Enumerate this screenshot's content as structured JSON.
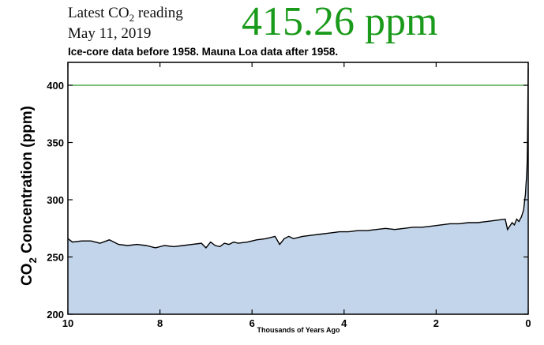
{
  "header": {
    "latest_label_prefix": "Latest CO",
    "latest_label_sub": "2",
    "latest_label_suffix": " reading",
    "date": "May 11, 2019",
    "value": "415.26 ppm",
    "subtitle": "Ice-core data before 1958. Mauna Loa data after 1958."
  },
  "colors": {
    "fill": "#c3d5ea",
    "line": "#000000",
    "reference_line": "#2e9a2e",
    "value_text": "#1a9a1a"
  },
  "chart_data": {
    "type": "area",
    "title": "",
    "xlabel": "Thousands of Years Ago",
    "ylabel_prefix": "CO",
    "ylabel_sub": "2",
    "ylabel_suffix": " Concentration (ppm)",
    "xlim": [
      10,
      0
    ],
    "ylim": [
      200,
      420
    ],
    "xticks": [
      10,
      8,
      6,
      4,
      2,
      0
    ],
    "yticks": [
      200,
      250,
      300,
      350,
      400
    ],
    "reference_line": 400,
    "grid": false,
    "series": [
      {
        "x": [
          10,
          9.9,
          9.7,
          9.5,
          9.3,
          9.1,
          9.0,
          8.9,
          8.7,
          8.5,
          8.3,
          8.1,
          7.9,
          7.7,
          7.5,
          7.3,
          7.1,
          7.0,
          6.9,
          6.8,
          6.7,
          6.6,
          6.5,
          6.4,
          6.3,
          6.1,
          5.9,
          5.7,
          5.5,
          5.4,
          5.3,
          5.2,
          5.1,
          4.9,
          4.7,
          4.5,
          4.3,
          4.1,
          3.9,
          3.7,
          3.5,
          3.3,
          3.1,
          2.9,
          2.7,
          2.5,
          2.3,
          2.1,
          1.9,
          1.7,
          1.5,
          1.3,
          1.1,
          0.9,
          0.7,
          0.5,
          0.45,
          0.4,
          0.35,
          0.3,
          0.25,
          0.2,
          0.15,
          0.1,
          0.08,
          0.06,
          0.05,
          0.04,
          0.03,
          0.02,
          0.015,
          0.01,
          0.005,
          0
        ],
        "y": [
          266,
          263,
          264,
          264,
          262,
          265,
          263,
          261,
          260,
          261,
          260,
          258,
          260,
          259,
          260,
          261,
          262,
          258,
          263,
          260,
          259,
          262,
          261,
          263,
          262,
          263,
          265,
          266,
          268,
          261,
          266,
          268,
          266,
          268,
          269,
          270,
          271,
          272,
          272,
          273,
          273,
          274,
          275,
          274,
          275,
          276,
          276,
          277,
          278,
          279,
          279,
          280,
          280,
          281,
          282,
          283,
          274,
          277,
          280,
          278,
          283,
          281,
          285,
          291,
          298,
          305,
          312,
          318,
          325,
          335,
          350,
          370,
          395,
          415
        ]
      }
    ]
  }
}
